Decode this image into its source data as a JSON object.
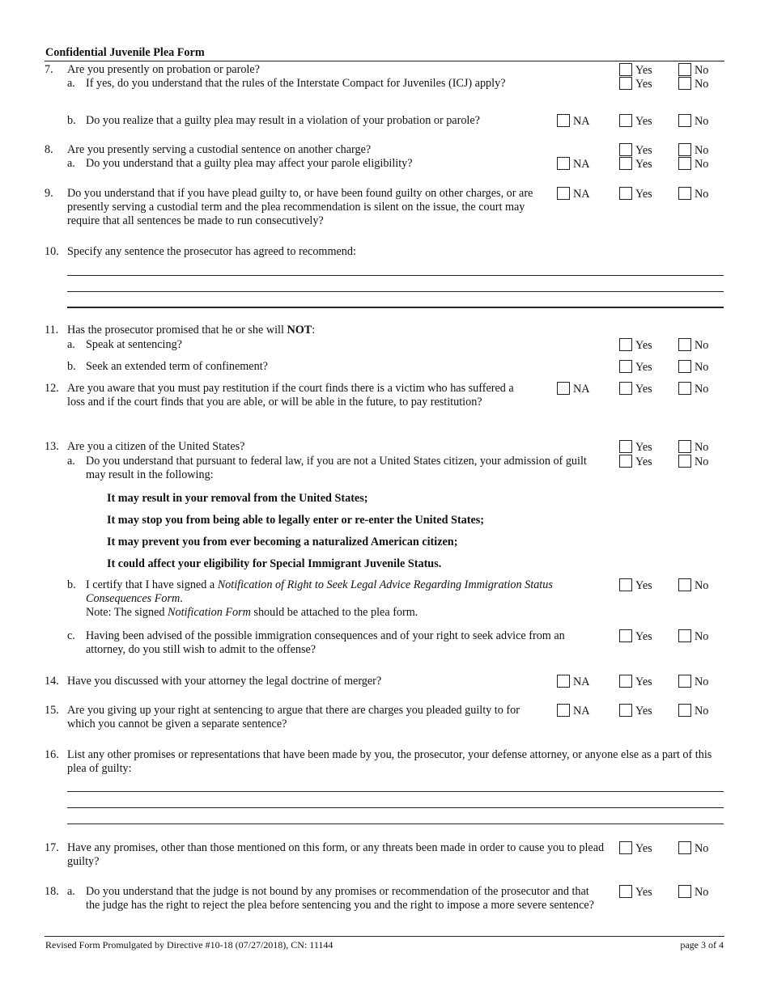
{
  "header": {
    "title": "Confidential Juvenile Plea Form"
  },
  "labels": {
    "yes": "Yes",
    "no": "No",
    "na": "NA"
  },
  "q7": {
    "num": "7.",
    "text": "Are you presently on probation or parole?",
    "a_letter": "a.",
    "a_text": "If yes, do you understand that the rules of the Interstate Compact for Juveniles (ICJ) apply?",
    "b_letter": "b.",
    "b_text": "Do you realize that a guilty plea may result in a violation of your probation or parole?"
  },
  "q8": {
    "num": "8.",
    "text": "Are you presently serving a custodial sentence on another charge?",
    "a_letter": "a.",
    "a_text": "Do you understand that a guilty plea may affect your parole eligibility?"
  },
  "q9": {
    "num": "9.",
    "text": "Do you understand that if you have plead guilty to, or have been found guilty on other charges, or are presently serving a custodial term and the plea recommendation is silent on the issue, the court may require that all sentences be made to run consecutively?"
  },
  "q10": {
    "num": "10.",
    "text": "Specify any sentence the prosecutor has agreed to recommend:"
  },
  "q11": {
    "num": "11.",
    "text_pre": "Has the prosecutor promised that he or she will ",
    "text_bold": "NOT",
    "text_post": ":",
    "a_letter": "a.",
    "a_text": "Speak at sentencing?",
    "b_letter": "b.",
    "b_text": "Seek an extended term of confinement?"
  },
  "q12": {
    "num": "12.",
    "text": "Are you aware that you must pay restitution if the court finds there is a victim who has suffered a loss and if the court finds that you are able, or will be able in the future, to pay restitution?"
  },
  "q13": {
    "num": "13.",
    "text": "Are you a citizen of the United States?",
    "a_letter": "a.",
    "a_text": "Do you understand that pursuant to federal law, if you are not a United States citizen, your admission of guilt may result in the following:",
    "consequences": [
      "It may result in your removal from the United States;",
      "It may stop you from being able to legally enter or re-enter the United States;",
      "It may prevent you from ever becoming a naturalized American citizen;",
      "It could affect your eligibility for Special Immigrant Juvenile Status."
    ],
    "b_letter": "b.",
    "b_pre": "I certify that I have signed a ",
    "b_italic": "Notification of Right to Seek Legal Advice Regarding Immigration Status Consequences Form",
    "b_post": ".",
    "b_note_pre": "Note: The signed ",
    "b_note_italic": "Notification Form",
    "b_note_post": " should be attached to the plea form.",
    "c_letter": "c.",
    "c_text": "Having been advised of the possible immigration consequences and of your right to seek advice from an attorney, do you still wish to admit to the offense?"
  },
  "q14": {
    "num": "14.",
    "text": "Have you discussed with your attorney the legal doctrine of merger?"
  },
  "q15": {
    "num": "15.",
    "text": "Are you giving up your right at sentencing to argue that there are charges you pleaded guilty to for which you cannot be given a separate sentence?"
  },
  "q16": {
    "num": "16.",
    "text": "List any other promises or representations that have been made by you, the prosecutor, your defense attorney, or anyone else as a part of this plea of guilty:"
  },
  "q17": {
    "num": "17.",
    "text": "Have any promises, other than those mentioned on this form, or any threats been made in order to cause you to plead guilty?"
  },
  "q18": {
    "num": "18.",
    "a_letter": "a.",
    "a_text": "Do you understand that the judge is not bound by any promises or recommendation of the prosecutor and that the judge has the right to reject the plea before sentencing you and the right to impose a more severe sentence?"
  },
  "footer": {
    "left": "Revised Form Promulgated by Directive #10-18 (07/27/2018), CN: 11144",
    "right": "page 3 of 4"
  }
}
